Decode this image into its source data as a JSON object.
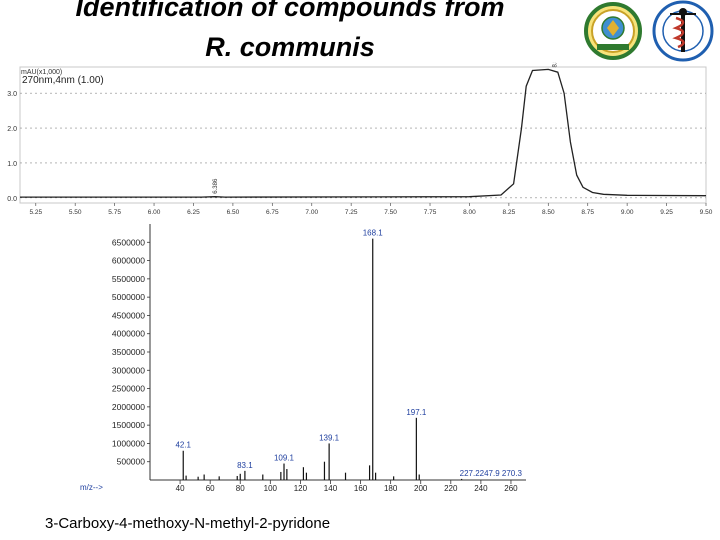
{
  "title_line1": "Identification of compounds from",
  "title_line2": "R. communis",
  "caption": "3-Carboxy-4-methoxy-N-methyl-2-pyridone",
  "logos": [
    "institute-seal-logo",
    "kemri-logo"
  ],
  "chart_data": [
    {
      "type": "line",
      "name": "chromatogram",
      "unit_label": "mAU(x1,000)",
      "channel_label": "270nm,4nm (1.00)",
      "xlim": [
        5.15,
        9.5
      ],
      "ylim": [
        -0.15,
        3.75
      ],
      "x_ticks": [
        "5.25",
        "5.50",
        "5.75",
        "6.00",
        "6.25",
        "6.50",
        "6.75",
        "7.00",
        "7.25",
        "7.50",
        "7.75",
        "8.00",
        "8.25",
        "8.50",
        "8.75",
        "9.00",
        "9.25",
        "9.50"
      ],
      "y_ticks": [
        "0.0",
        "1.0",
        "2.0",
        "3.0"
      ],
      "peak_labels": [
        {
          "x": 6.386,
          "label": "6.386"
        },
        {
          "x": 8.538,
          "label": "8.538"
        }
      ],
      "points": [
        [
          5.15,
          0.02
        ],
        [
          6.3,
          0.02
        ],
        [
          6.386,
          0.03
        ],
        [
          6.45,
          0.02
        ],
        [
          8.0,
          0.03
        ],
        [
          8.2,
          0.08
        ],
        [
          8.28,
          0.4
        ],
        [
          8.33,
          2.0
        ],
        [
          8.36,
          3.2
        ],
        [
          8.4,
          3.65
        ],
        [
          8.5,
          3.68
        ],
        [
          8.56,
          3.6
        ],
        [
          8.6,
          3.0
        ],
        [
          8.64,
          1.6
        ],
        [
          8.68,
          0.65
        ],
        [
          8.72,
          0.3
        ],
        [
          8.78,
          0.15
        ],
        [
          8.85,
          0.1
        ],
        [
          9.0,
          0.07
        ],
        [
          9.5,
          0.06
        ]
      ]
    },
    {
      "type": "bar",
      "name": "mass-spectrum",
      "xlabel": "m/z-->",
      "xlim": [
        20,
        270
      ],
      "ylim": [
        0,
        7000000
      ],
      "x_ticks": [
        "40",
        "60",
        "80",
        "100",
        "120",
        "140",
        "160",
        "180",
        "200",
        "220",
        "240",
        "260"
      ],
      "y_ticks": [
        "500000",
        "1000000",
        "1500000",
        "2000000",
        "2500000",
        "3000000",
        "3500000",
        "4000000",
        "4500000",
        "5000000",
        "5500000",
        "6000000",
        "6500000"
      ],
      "peaks": [
        {
          "mz": 42.1,
          "abundance": 800000,
          "label": "42.1"
        },
        {
          "mz": 44,
          "abundance": 120000
        },
        {
          "mz": 52,
          "abundance": 90000
        },
        {
          "mz": 56,
          "abundance": 150000
        },
        {
          "mz": 66,
          "abundance": 100000
        },
        {
          "mz": 78,
          "abundance": 110000
        },
        {
          "mz": 80,
          "abundance": 170000
        },
        {
          "mz": 83.1,
          "abundance": 250000,
          "label": "83.1"
        },
        {
          "mz": 95,
          "abundance": 150000
        },
        {
          "mz": 107,
          "abundance": 220000
        },
        {
          "mz": 109.1,
          "abundance": 450000,
          "label": "109.1"
        },
        {
          "mz": 111,
          "abundance": 300000
        },
        {
          "mz": 122,
          "abundance": 350000
        },
        {
          "mz": 124,
          "abundance": 200000
        },
        {
          "mz": 136,
          "abundance": 500000
        },
        {
          "mz": 139.1,
          "abundance": 1000000,
          "label": "139.1"
        },
        {
          "mz": 150,
          "abundance": 200000
        },
        {
          "mz": 166,
          "abundance": 400000
        },
        {
          "mz": 168.1,
          "abundance": 6600000,
          "label": "168.1"
        },
        {
          "mz": 170,
          "abundance": 200000
        },
        {
          "mz": 182,
          "abundance": 100000
        },
        {
          "mz": 197.1,
          "abundance": 1700000,
          "label": "197.1"
        },
        {
          "mz": 199,
          "abundance": 150000
        },
        {
          "mz": 227.2,
          "abundance": 30000,
          "label": "227.2247.9 270.3"
        }
      ]
    }
  ]
}
